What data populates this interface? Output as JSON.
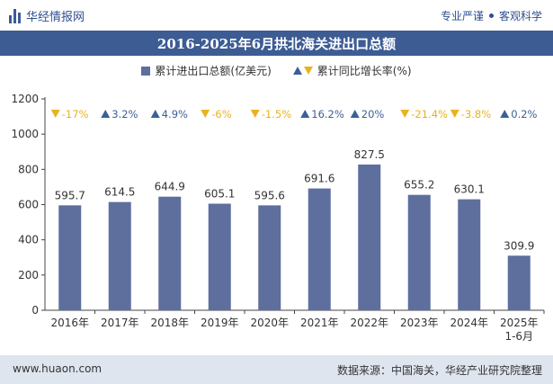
{
  "header": {
    "brand": "华经情报网",
    "slogan_left": "专业严谨",
    "slogan_right": "客观科学"
  },
  "title": "2016-2025年6月拱北海关进出口总额",
  "legend": {
    "bar": "累计进出口总额(亿美元)",
    "growth": "累计同比增长率(%)"
  },
  "colors": {
    "bar": "#5e6f9e",
    "up": "#3c5f97",
    "down": "#e8b31f",
    "title_bg": "#3d5c94",
    "footer_bg": "#dfe5ef"
  },
  "chart_data": {
    "type": "bar",
    "categories": [
      "2016年",
      "2017年",
      "2018年",
      "2019年",
      "2020年",
      "2021年",
      "2022年",
      "2023年",
      "2024年",
      "2025年\n1-6月"
    ],
    "values": [
      595.7,
      614.5,
      644.9,
      605.1,
      595.6,
      691.6,
      827.5,
      655.2,
      630.1,
      309.9
    ],
    "value_labels": [
      "595.7",
      "614.5",
      "644.9",
      "605.1",
      "595.6",
      "691.6",
      "827.5",
      "655.2",
      "630.1",
      "309.9"
    ],
    "growth": [
      -17,
      3.2,
      4.9,
      -6,
      -1.5,
      16.2,
      20,
      -21.4,
      -3.8,
      0.2
    ],
    "growth_labels": [
      "-17%",
      "3.2%",
      "4.9%",
      "-6%",
      "-1.5%",
      "16.2%",
      "20%",
      "-21.4%",
      "-3.8%",
      "0.2%"
    ],
    "yticks": [
      "0",
      "200",
      "400",
      "600",
      "800",
      "1000",
      "1200"
    ],
    "ylim": [
      0,
      1200
    ],
    "grid": false
  },
  "footer": {
    "website": "www.huaon.com",
    "source": "数据来源：中国海关，华经产业研究院整理"
  }
}
